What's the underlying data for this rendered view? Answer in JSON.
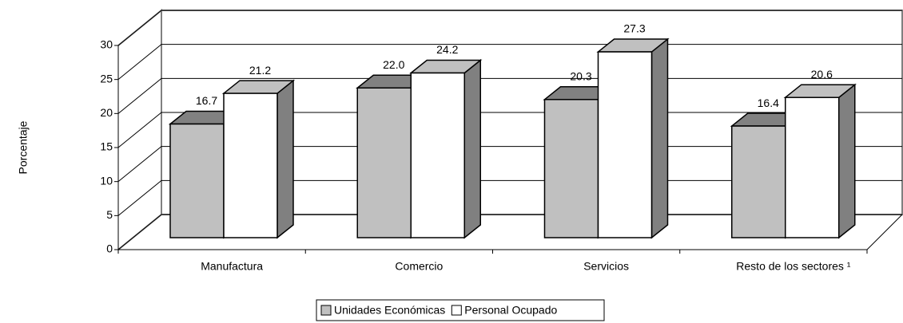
{
  "chart_data": {
    "type": "bar3d",
    "ylabel": "Porcentaje",
    "categories": [
      "Manufactura",
      "Comercio",
      "Servicios",
      "Resto de los sectores ¹"
    ],
    "series": [
      {
        "name": "Unidades Económicas",
        "color": "#c0c0c0",
        "values": [
          16.7,
          22.0,
          20.3,
          16.4
        ],
        "value_labels": [
          "16.7",
          "22.0",
          "20.3",
          "16.4"
        ]
      },
      {
        "name": "Personal Ocupado",
        "color": "#ffffff",
        "values": [
          21.2,
          24.2,
          27.3,
          20.6
        ],
        "value_labels": [
          "21.2",
          "24.2",
          "27.3",
          "20.6"
        ]
      }
    ],
    "ylim": [
      0,
      30
    ],
    "yticks": [
      0,
      5,
      10,
      15,
      20,
      25,
      30
    ],
    "grid": true,
    "legend": "bottom"
  }
}
